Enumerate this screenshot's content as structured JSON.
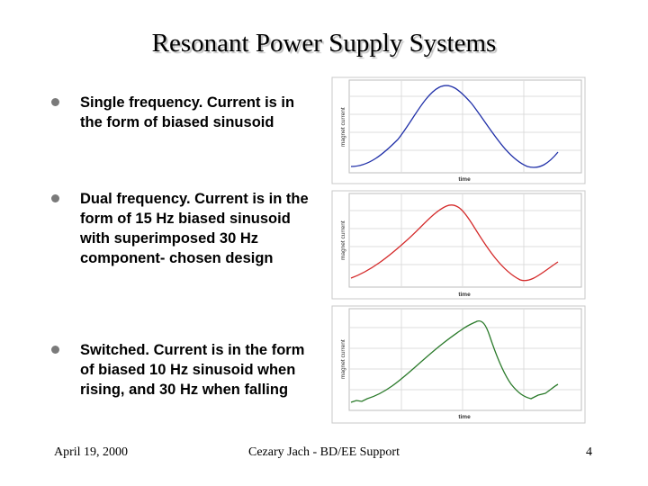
{
  "slide": {
    "title": "Resonant Power Supply Systems",
    "bullets": [
      {
        "text": "Single frequency. Current is in the form of biased sinusoid"
      },
      {
        "text": "Dual frequency. Current is in the form of 15 Hz biased sinusoid with superimposed 30 Hz component- chosen design"
      },
      {
        "text": "Switched. Current is in the form of biased 10 Hz sinusoid when rising, and 30 Hz when falling"
      }
    ]
  },
  "plots": [
    {
      "ylabel": "magnet current",
      "xlabel": "time",
      "color": "#1f2fa8"
    },
    {
      "ylabel": "magnet current",
      "xlabel": "time",
      "color": "#d42a2a"
    },
    {
      "ylabel": "magnet current",
      "xlabel": "time",
      "color": "#2a7a2a"
    }
  ],
  "footer": {
    "date": "April 19, 2000",
    "center": "Cezary Jach - BD/EE Support",
    "page": "4"
  }
}
